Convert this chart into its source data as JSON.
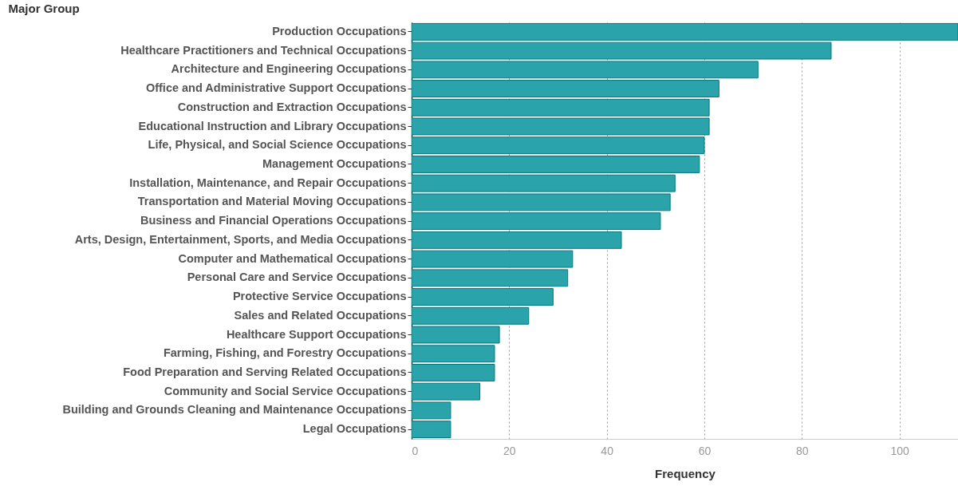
{
  "chart_data": {
    "type": "bar",
    "orientation": "horizontal",
    "ylabel": "Major Group",
    "xlabel": "Frequency",
    "categories": [
      "Production Occupations",
      "Healthcare Practitioners and Technical Occupations",
      "Architecture and Engineering Occupations",
      "Office and Administrative Support Occupations",
      "Construction and Extraction Occupations",
      "Educational Instruction and Library Occupations",
      "Life, Physical, and Social Science Occupations",
      "Management Occupations",
      "Installation, Maintenance, and Repair Occupations",
      "Transportation and Material Moving Occupations",
      "Business and Financial Operations Occupations",
      "Arts, Design, Entertainment, Sports, and Media Occupations",
      "Computer and Mathematical Occupations",
      "Personal Care and Service Occupations",
      "Protective Service Occupations",
      "Sales and Related Occupations",
      "Healthcare Support Occupations",
      "Farming, Fishing, and Forestry Occupations",
      "Food Preparation and Serving Related Occupations",
      "Community and Social Service Occupations",
      "Building and Grounds Cleaning and Maintenance Occupations",
      "Legal Occupations"
    ],
    "values": [
      112,
      86,
      71,
      63,
      61,
      61,
      60,
      59,
      54,
      53,
      51,
      43,
      33,
      32,
      29,
      24,
      18,
      17,
      17,
      14,
      8,
      8
    ],
    "color": "#2aa3aa",
    "xlim": [
      0,
      112
    ],
    "xticks": [
      0,
      20,
      40,
      60,
      80,
      100
    ],
    "grid": "x"
  }
}
